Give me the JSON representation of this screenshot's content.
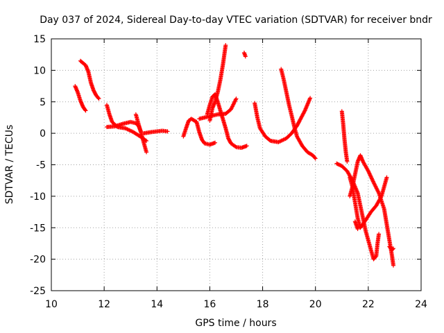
{
  "chart_data": {
    "type": "scatter",
    "title": "Day 037 of 2024, Sidereal Day-to-day VTEC variation (SDTVAR) for receiver bndr",
    "xlabel": "GPS time / hours",
    "ylabel": "SDTVAR / TECUs",
    "xlim": [
      10,
      24
    ],
    "ylim": [
      -25,
      15
    ],
    "x_ticks": [
      "10",
      "12",
      "14",
      "16",
      "18",
      "20",
      "22",
      "24"
    ],
    "y_ticks": [
      "15",
      "10",
      "5",
      "0",
      "-5",
      "-10",
      "-15",
      "-20",
      "-25"
    ],
    "grid": true,
    "marker": "plus",
    "color": "#ff0000",
    "series": [
      {
        "points": [
          [
            10.9,
            7.5
          ],
          [
            11.0,
            6.5
          ],
          [
            11.1,
            5.2
          ],
          [
            11.2,
            4.2
          ],
          [
            11.3,
            3.6
          ]
        ]
      },
      {
        "points": [
          [
            11.1,
            11.5
          ],
          [
            11.3,
            10.8
          ],
          [
            11.4,
            9.8
          ],
          [
            11.5,
            8.0
          ],
          [
            11.6,
            6.8
          ],
          [
            11.7,
            6.0
          ],
          [
            11.8,
            5.5
          ]
        ]
      },
      {
        "points": [
          [
            12.1,
            4.5
          ],
          [
            12.2,
            3.0
          ],
          [
            12.3,
            1.8
          ],
          [
            12.5,
            1.0
          ],
          [
            12.8,
            0.8
          ],
          [
            13.1,
            0.2
          ],
          [
            13.4,
            -0.6
          ],
          [
            13.6,
            -1.2
          ]
        ]
      },
      {
        "points": [
          [
            12.1,
            1.0
          ],
          [
            12.4,
            1.1
          ],
          [
            12.7,
            1.5
          ],
          [
            13.0,
            1.8
          ],
          [
            13.2,
            1.6
          ],
          [
            13.3,
            1.2
          ],
          [
            13.4,
            0.2
          ]
        ]
      },
      {
        "points": [
          [
            13.2,
            3.0
          ],
          [
            13.3,
            1.5
          ],
          [
            13.4,
            0.0
          ],
          [
            13.5,
            -1.5
          ],
          [
            13.6,
            -3.0
          ]
        ]
      },
      {
        "points": [
          [
            13.5,
            0.0
          ],
          [
            13.8,
            0.2
          ],
          [
            14.0,
            0.3
          ],
          [
            14.2,
            0.4
          ],
          [
            14.4,
            0.3
          ]
        ]
      },
      {
        "points": [
          [
            15.0,
            -0.5
          ],
          [
            15.1,
            0.8
          ],
          [
            15.2,
            2.0
          ],
          [
            15.3,
            2.3
          ],
          [
            15.5,
            1.8
          ],
          [
            15.6,
            0.2
          ],
          [
            15.7,
            -1.0
          ],
          [
            15.8,
            -1.6
          ],
          [
            16.0,
            -1.8
          ],
          [
            16.2,
            -1.5
          ]
        ]
      },
      {
        "points": [
          [
            15.9,
            3.0
          ],
          [
            16.0,
            4.5
          ],
          [
            16.1,
            5.8
          ],
          [
            16.2,
            6.2
          ],
          [
            16.3,
            5.0
          ],
          [
            16.4,
            3.6
          ],
          [
            16.5,
            2.2
          ],
          [
            16.6,
            0.8
          ],
          [
            16.7,
            -0.8
          ],
          [
            16.8,
            -1.6
          ],
          [
            17.0,
            -2.2
          ],
          [
            17.2,
            -2.3
          ],
          [
            17.4,
            -2.0
          ]
        ]
      },
      {
        "points": [
          [
            15.6,
            2.3
          ],
          [
            15.9,
            2.6
          ],
          [
            16.1,
            2.8
          ],
          [
            16.3,
            3.0
          ],
          [
            16.6,
            3.1
          ],
          [
            16.8,
            3.8
          ],
          [
            17.0,
            5.5
          ]
        ]
      },
      {
        "points": [
          [
            16.0,
            2.0
          ],
          [
            16.1,
            4.0
          ],
          [
            16.2,
            5.0
          ],
          [
            16.3,
            6.5
          ],
          [
            16.4,
            8.5
          ],
          [
            16.5,
            11.0
          ],
          [
            16.6,
            14.0
          ]
        ]
      },
      {
        "points": [
          [
            17.3,
            12.8
          ],
          [
            17.35,
            12.2
          ]
        ]
      },
      {
        "points": [
          [
            17.7,
            4.8
          ],
          [
            17.8,
            2.5
          ],
          [
            17.9,
            0.8
          ],
          [
            18.1,
            -0.5
          ],
          [
            18.3,
            -1.2
          ],
          [
            18.6,
            -1.4
          ],
          [
            18.9,
            -0.8
          ],
          [
            19.1,
            0.0
          ],
          [
            19.3,
            1.2
          ],
          [
            19.4,
            2.0
          ],
          [
            19.6,
            3.6
          ],
          [
            19.8,
            5.6
          ]
        ]
      },
      {
        "points": [
          [
            18.7,
            10.2
          ],
          [
            18.8,
            8.5
          ],
          [
            18.9,
            6.5
          ],
          [
            19.0,
            4.5
          ],
          [
            19.1,
            2.8
          ],
          [
            19.2,
            1.0
          ],
          [
            19.3,
            -0.5
          ],
          [
            19.5,
            -2.0
          ],
          [
            19.7,
            -3.0
          ],
          [
            19.9,
            -3.5
          ],
          [
            20.0,
            -4.0
          ]
        ]
      },
      {
        "points": [
          [
            20.8,
            -4.8
          ],
          [
            21.0,
            -5.2
          ],
          [
            21.2,
            -6.0
          ],
          [
            21.4,
            -7.5
          ],
          [
            21.6,
            -9.5
          ],
          [
            21.7,
            -11.5
          ],
          [
            21.8,
            -13.5
          ],
          [
            21.9,
            -15.5
          ],
          [
            22.0,
            -17.0
          ],
          [
            22.1,
            -18.5
          ],
          [
            22.2,
            -20.0
          ],
          [
            22.3,
            -19.5
          ],
          [
            22.35,
            -17.5
          ],
          [
            22.4,
            -16.0
          ]
        ]
      },
      {
        "points": [
          [
            21.0,
            3.5
          ],
          [
            21.05,
            1.5
          ],
          [
            21.1,
            -1.0
          ],
          [
            21.15,
            -3.0
          ],
          [
            21.2,
            -4.5
          ]
        ]
      },
      {
        "points": [
          [
            21.3,
            -7.0
          ],
          [
            21.4,
            -8.5
          ],
          [
            21.5,
            -11.0
          ],
          [
            21.6,
            -13.5
          ],
          [
            21.7,
            -15.0
          ],
          [
            21.9,
            -13.8
          ],
          [
            22.1,
            -12.5
          ],
          [
            22.3,
            -11.5
          ],
          [
            22.5,
            -10.0
          ],
          [
            22.6,
            -8.5
          ],
          [
            22.7,
            -7.0
          ]
        ]
      },
      {
        "points": [
          [
            21.3,
            -10.0
          ],
          [
            21.4,
            -8.5
          ],
          [
            21.5,
            -6.5
          ],
          [
            21.6,
            -4.5
          ],
          [
            21.7,
            -3.5
          ],
          [
            21.8,
            -4.5
          ],
          [
            22.0,
            -6.0
          ],
          [
            22.2,
            -7.8
          ],
          [
            22.4,
            -9.5
          ],
          [
            22.6,
            -12.0
          ],
          [
            22.7,
            -14.5
          ],
          [
            22.8,
            -17.0
          ],
          [
            22.9,
            -19.5
          ],
          [
            22.95,
            -21.0
          ]
        ]
      },
      {
        "points": [
          [
            21.5,
            -14.0
          ],
          [
            21.6,
            -15.2
          ]
        ]
      },
      {
        "points": [
          [
            22.8,
            -18.0
          ],
          [
            22.9,
            -18.5
          ],
          [
            22.95,
            -18.3
          ]
        ]
      }
    ]
  }
}
